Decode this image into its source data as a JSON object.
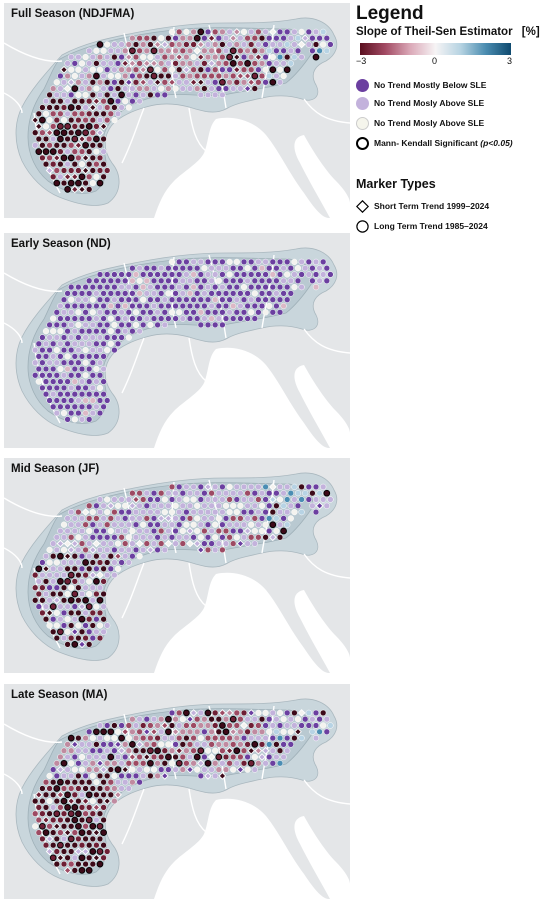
{
  "panels": [
    {
      "title": "Full Season (NDJFMA)",
      "mode": "full"
    },
    {
      "title": "Early Season (ND)",
      "mode": "early"
    },
    {
      "title": "Mid Season (JF)",
      "mode": "mid"
    },
    {
      "title": "Late Season (MA)",
      "mode": "late"
    }
  ],
  "legend": {
    "title": "Legend",
    "subtitle": "Slope of Theil-Sen Estimator",
    "unit": "[%]",
    "colorbar": {
      "min": -3,
      "mid": 0,
      "max": 3,
      "min_label": "−3",
      "mid_label": "0",
      "max_label": "3",
      "colors": [
        "#5a0f1f",
        "#a24a63",
        "#dba9b8",
        "#f6f4f5",
        "#b6d3e2",
        "#4a8cb0",
        "#0f4a6f"
      ]
    },
    "categories": [
      {
        "label": "No Trend Mostly Below SLE",
        "color": "#6b3fa0"
      },
      {
        "label": "No Trend Mosly Above SLE",
        "color": "#c3b2dc"
      },
      {
        "label": "No Trend Mosly Above SLE",
        "color": "#f5f5ec"
      },
      {
        "label": "Mann- Kendall Significant",
        "italic_note": "(p<0.05)",
        "color": "#ffffff"
      }
    ],
    "marker_types": {
      "title": "Marker Types",
      "items": [
        {
          "label": "Short Term Trend 1999–2024",
          "shape": "diamond"
        },
        {
          "label": "Long Term Trend 1985–2024",
          "shape": "circle"
        }
      ]
    }
  }
}
